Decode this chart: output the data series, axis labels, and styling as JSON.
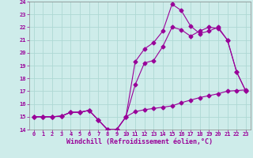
{
  "xlabel": "Windchill (Refroidissement éolien,°C)",
  "xlim": [
    -0.5,
    23.5
  ],
  "ylim": [
    14,
    24
  ],
  "xticks": [
    0,
    1,
    2,
    3,
    4,
    5,
    6,
    7,
    8,
    9,
    10,
    11,
    12,
    13,
    14,
    15,
    16,
    17,
    18,
    19,
    20,
    21,
    22,
    23
  ],
  "yticks": [
    14,
    15,
    16,
    17,
    18,
    19,
    20,
    21,
    22,
    23,
    24
  ],
  "background_color": "#ceecea",
  "grid_color": "#aed8d4",
  "line_color": "#990099",
  "line1_x": [
    0,
    1,
    2,
    3,
    4,
    5,
    6,
    7,
    8,
    9,
    10,
    11,
    12,
    13,
    14,
    15,
    16,
    17,
    18,
    19,
    20,
    21,
    22,
    23
  ],
  "line1_y": [
    15.0,
    15.0,
    15.0,
    15.05,
    15.35,
    15.35,
    15.5,
    14.75,
    14.0,
    14.0,
    15.0,
    15.4,
    15.55,
    15.65,
    15.75,
    15.85,
    16.1,
    16.3,
    16.5,
    16.65,
    16.8,
    17.0,
    17.05,
    17.1
  ],
  "line2_x": [
    0,
    1,
    2,
    3,
    4,
    5,
    6,
    7,
    8,
    9,
    10,
    11,
    12,
    13,
    14,
    15,
    16,
    17,
    18,
    19,
    20,
    21,
    22,
    23
  ],
  "line2_y": [
    15.0,
    15.0,
    15.0,
    15.05,
    15.35,
    15.35,
    15.5,
    14.75,
    14.0,
    14.0,
    15.0,
    17.5,
    19.2,
    19.4,
    20.5,
    22.0,
    21.8,
    21.3,
    21.7,
    22.0,
    21.9,
    21.0,
    18.5,
    17.0
  ],
  "line3_x": [
    0,
    1,
    2,
    3,
    4,
    5,
    6,
    7,
    8,
    9,
    10,
    11,
    12,
    13,
    14,
    15,
    16,
    17,
    18,
    19,
    20,
    21,
    22,
    23
  ],
  "line3_y": [
    15.0,
    15.0,
    15.0,
    15.05,
    15.35,
    15.35,
    15.5,
    14.75,
    14.0,
    14.0,
    15.0,
    19.3,
    20.3,
    20.8,
    21.7,
    23.8,
    23.3,
    22.1,
    21.5,
    21.7,
    22.0,
    21.0,
    18.5,
    17.0
  ],
  "marker": "D",
  "markersize": 2.5,
  "linewidth": 0.8,
  "tick_fontsize": 5.0,
  "xlabel_fontsize": 6.0
}
